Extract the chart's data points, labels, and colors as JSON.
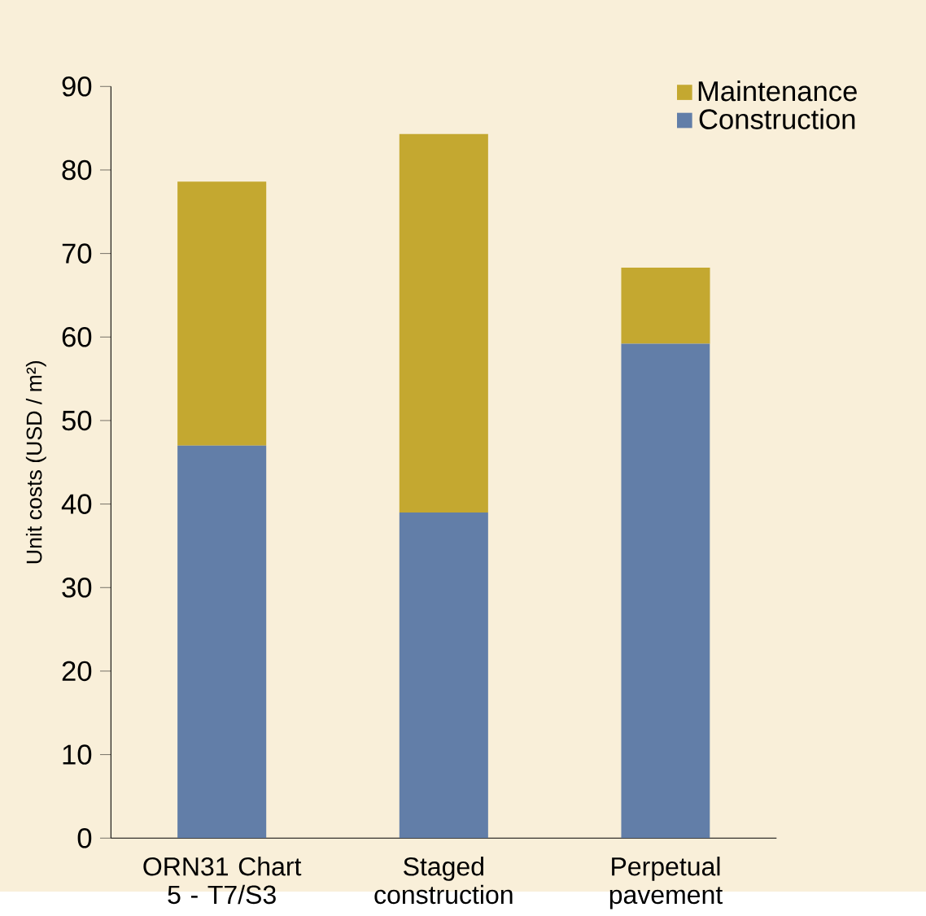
{
  "chart_data": {
    "type": "bar",
    "stacked": true,
    "ylabel": "Unit costs (USD / m²)",
    "categories": [
      "ORN31 Chart 5 - T7/S3",
      "Staged construction",
      "Perpetual pavement"
    ],
    "series": [
      {
        "name": "Construction",
        "color": "#627ea8",
        "values": [
          47,
          39,
          59.2
        ]
      },
      {
        "name": "Maintenance",
        "color": "#c4a830",
        "values": [
          31.6,
          45.3,
          9.1
        ]
      }
    ],
    "ylim": [
      0,
      90
    ],
    "yticks": [
      0,
      10,
      20,
      30,
      40,
      50,
      60,
      70,
      80,
      90
    ],
    "legend": "top right"
  }
}
